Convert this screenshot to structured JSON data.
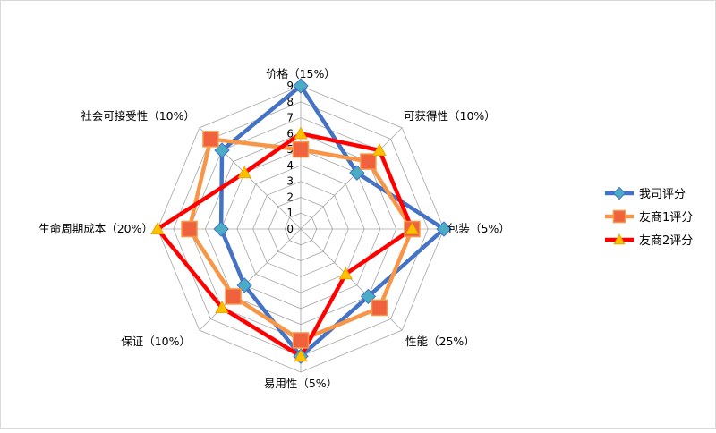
{
  "chart_data": {
    "type": "radar",
    "categories": [
      "价格（15%）",
      "可获得性（10%）",
      "包装（5%）",
      "性能（25%）",
      "易用性（5%）",
      "保证（10%）",
      "生命周期成本（20%）",
      "社会可接受性（10%）"
    ],
    "r_ticks": [
      "0",
      "1",
      "2",
      "3",
      "4",
      "5",
      "6",
      "7",
      "8",
      "9"
    ],
    "rlim": [
      0,
      9
    ],
    "grid": true,
    "legend_position": "right",
    "series": [
      {
        "name": "我司评分",
        "values": [
          9,
          5,
          9,
          6,
          8,
          5,
          5,
          7
        ],
        "color": "#4472c4",
        "marker_color": "#4bacc6",
        "marker": "diamond"
      },
      {
        "name": "友商1评分",
        "values": [
          5,
          6,
          7,
          7,
          7,
          6,
          7,
          8
        ],
        "color": "#f79646",
        "marker_color": "#f0623e",
        "marker": "square"
      },
      {
        "name": "友商2评分",
        "values": [
          6,
          7,
          7,
          4,
          8,
          7,
          9,
          5
        ],
        "color": "#ff0000",
        "marker_color": "#ffc000",
        "marker": "triangle"
      }
    ]
  }
}
